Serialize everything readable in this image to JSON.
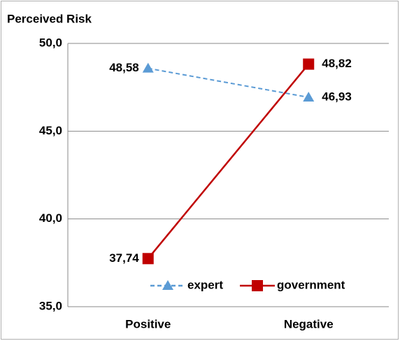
{
  "chart_data": {
    "type": "line",
    "title": "Perceived Risk",
    "categories": [
      "Positive",
      "Negative"
    ],
    "series": [
      {
        "name": "expert",
        "color": "#5b9bd5",
        "line_style": "dashed",
        "marker": "triangle",
        "values": [
          48.58,
          46.93
        ],
        "value_labels": [
          "48,58",
          "46,93"
        ]
      },
      {
        "name": "government",
        "color": "#c00000",
        "line_style": "solid",
        "marker": "square",
        "values": [
          37.74,
          48.82
        ],
        "value_labels": [
          "37,74",
          "48,82"
        ]
      }
    ],
    "ylim": [
      35,
      50
    ],
    "yticks": [
      {
        "value": 35,
        "label": "35,0"
      },
      {
        "value": 40,
        "label": "40,0"
      },
      {
        "value": 45,
        "label": "45,0"
      },
      {
        "value": 50,
        "label": "50,0"
      }
    ],
    "grid": true,
    "legend": "bottom"
  }
}
